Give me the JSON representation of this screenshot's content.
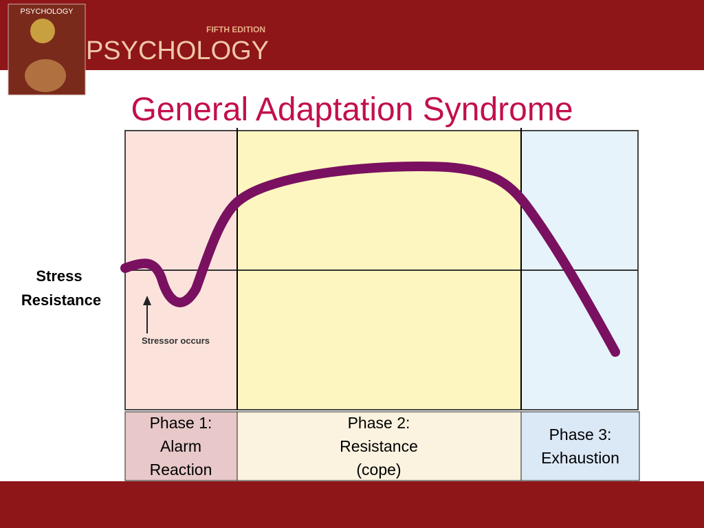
{
  "header": {
    "cover_title": "PSYCHOLOGY",
    "edition": "FIFTH EDITION",
    "book_title": "PSYCHOLOGY"
  },
  "title": "General Adaptation Syndrome",
  "y_label": [
    "Stress",
    "Resistance"
  ],
  "annotation": "Stressor occurs",
  "phases": [
    {
      "lines": [
        "Phase 1:",
        "Alarm",
        "Reaction"
      ]
    },
    {
      "lines": [
        "Phase 2:",
        "Resistance",
        "(cope)"
      ]
    },
    {
      "lines": [
        "Phase 3:",
        "Exhaustion"
      ]
    }
  ]
}
